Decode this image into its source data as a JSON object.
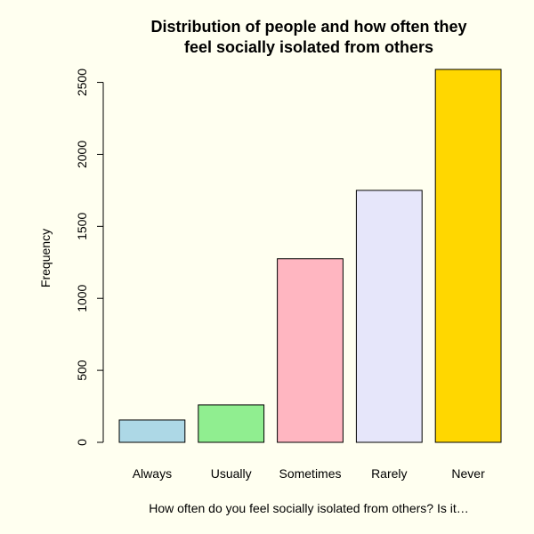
{
  "chart_data": {
    "type": "bar",
    "title": "Distribution of people and how often they feel socially isolated from others",
    "title_lines": [
      "Distribution of people and how often they",
      "feel socially isolated from others"
    ],
    "xlabel": "How often do you feel socially isolated from others?  Is it…",
    "ylabel": "Frequency",
    "categories": [
      "Always",
      "Usually",
      "Sometimes",
      "Rarely",
      "Never"
    ],
    "values": [
      155,
      260,
      1275,
      1750,
      2590
    ],
    "colors": [
      "#add8e6",
      "#90ee90",
      "#ffb6c1",
      "#e6e6fa",
      "#ffd700"
    ],
    "y_ticks": [
      0,
      500,
      1000,
      1500,
      2000,
      2500
    ],
    "ylim": [
      0,
      2590
    ],
    "grid": false,
    "background": "#fffff0"
  }
}
